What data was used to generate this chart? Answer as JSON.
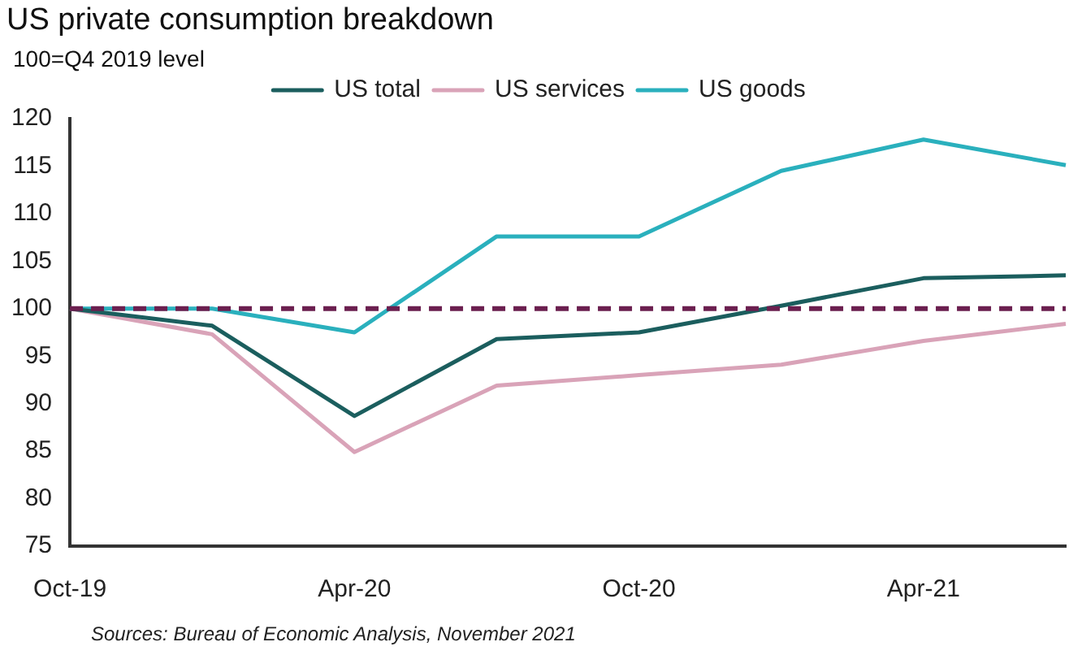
{
  "chart_data": {
    "type": "line",
    "title": "US private consumption breakdown",
    "subtitle": "100=Q4 2019 level",
    "categories": [
      "Oct-19",
      null,
      "Apr-20",
      null,
      "Oct-20",
      null,
      "Apr-21",
      null
    ],
    "series": [
      {
        "name": "US total",
        "color": "#1b5e5e",
        "values": [
          100,
          98.2,
          88.7,
          96.8,
          97.5,
          100.3,
          103.2,
          103.5
        ]
      },
      {
        "name": "US services",
        "color": "#d9a3b8",
        "values": [
          100,
          97.3,
          84.9,
          91.9,
          93,
          94.1,
          96.6,
          98.4
        ]
      },
      {
        "name": "US goods",
        "color": "#2ab0bd",
        "values": [
          100,
          100,
          97.5,
          107.6,
          107.6,
          114.5,
          117.8,
          115.1
        ]
      }
    ],
    "ylim": [
      75,
      120
    ],
    "yticks": [
      75,
      80,
      85,
      90,
      95,
      100,
      105,
      110,
      115,
      120
    ],
    "ref_lines": [
      {
        "axis": "y",
        "value": 100,
        "color": "#6b1f4f",
        "line_style": "dashed"
      }
    ],
    "annotations": [
      "Sources: Bureau of Economic Analysis, November 2021"
    ],
    "legend": "top",
    "grid": false,
    "marker": "none",
    "line_style": "solid"
  }
}
